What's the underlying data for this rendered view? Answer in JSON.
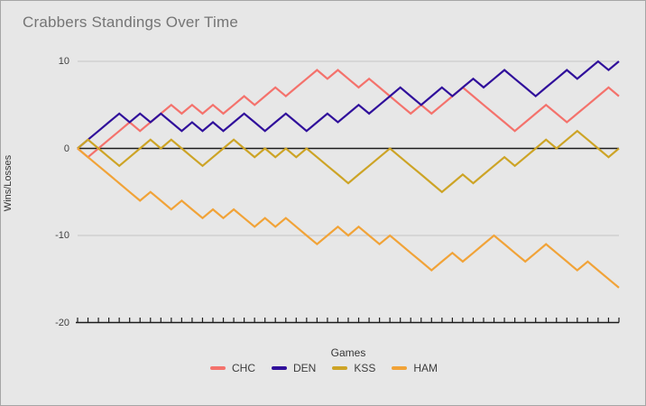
{
  "header": {
    "title": "Crabbers Standings Over Time"
  },
  "axes": {
    "x_label": "Games",
    "y_label": "Wins/Losses"
  },
  "colors": {
    "background": "#e7e7e7",
    "frame_border": "#a6a6a6",
    "grid": "#c6c6c6",
    "axis": "#1c1c1c",
    "title_text": "#757575",
    "label_text": "#3c3c3c"
  },
  "chart_data": {
    "type": "line",
    "title": "Crabbers Standings Over Time",
    "xlabel": "Games",
    "ylabel": "Wins/Losses",
    "x": [
      0,
      1,
      2,
      3,
      4,
      5,
      6,
      7,
      8,
      9,
      10,
      11,
      12,
      13,
      14,
      15,
      16,
      17,
      18,
      19,
      20,
      21,
      22,
      23,
      24,
      25,
      26,
      27,
      28,
      29,
      30,
      31,
      32,
      33,
      34,
      35,
      36,
      37,
      38,
      39,
      40,
      41,
      42,
      43,
      44,
      45,
      46,
      47,
      48,
      49,
      50,
      51,
      52
    ],
    "ylim": [
      -20,
      10
    ],
    "yticks": [
      10,
      0,
      -10,
      -20
    ],
    "zero_line": 0,
    "grid": true,
    "x_ticks_every_game": true,
    "legend_position": "bottom",
    "series": [
      {
        "name": "CHC",
        "color": "#f4726c",
        "values": [
          0,
          -1,
          0,
          1,
          2,
          3,
          2,
          3,
          4,
          5,
          4,
          5,
          4,
          5,
          4,
          5,
          6,
          5,
          6,
          7,
          6,
          7,
          8,
          9,
          8,
          9,
          8,
          7,
          8,
          7,
          6,
          5,
          4,
          5,
          4,
          5,
          6,
          7,
          6,
          5,
          4,
          3,
          2,
          3,
          4,
          5,
          4,
          3,
          4,
          5,
          6,
          7,
          6
        ]
      },
      {
        "name": "DEN",
        "color": "#30109b",
        "values": [
          0,
          1,
          2,
          3,
          4,
          3,
          4,
          3,
          4,
          3,
          2,
          3,
          2,
          3,
          2,
          3,
          4,
          3,
          2,
          3,
          4,
          3,
          2,
          3,
          4,
          3,
          4,
          5,
          4,
          5,
          6,
          7,
          6,
          5,
          6,
          7,
          6,
          7,
          8,
          7,
          8,
          9,
          8,
          7,
          6,
          7,
          8,
          9,
          8,
          9,
          10,
          9,
          10
        ]
      },
      {
        "name": "KSS",
        "color": "#cda426",
        "values": [
          0,
          1,
          0,
          -1,
          -2,
          -1,
          0,
          1,
          0,
          1,
          0,
          -1,
          -2,
          -1,
          0,
          1,
          0,
          -1,
          0,
          -1,
          0,
          -1,
          0,
          -1,
          -2,
          -3,
          -4,
          -3,
          -2,
          -1,
          0,
          -1,
          -2,
          -3,
          -4,
          -5,
          -4,
          -3,
          -4,
          -3,
          -2,
          -1,
          -2,
          -1,
          0,
          1,
          0,
          1,
          2,
          1,
          0,
          -1,
          0
        ]
      },
      {
        "name": "HAM",
        "color": "#f1a338",
        "values": [
          0,
          -1,
          -2,
          -3,
          -4,
          -5,
          -6,
          -5,
          -6,
          -7,
          -6,
          -7,
          -8,
          -7,
          -8,
          -7,
          -8,
          -9,
          -8,
          -9,
          -8,
          -9,
          -10,
          -11,
          -10,
          -9,
          -10,
          -9,
          -10,
          -11,
          -10,
          -11,
          -12,
          -13,
          -14,
          -13,
          -12,
          -13,
          -12,
          -11,
          -10,
          -11,
          -12,
          -13,
          -12,
          -11,
          -12,
          -13,
          -14,
          -13,
          -14,
          -15,
          -16
        ]
      }
    ]
  }
}
